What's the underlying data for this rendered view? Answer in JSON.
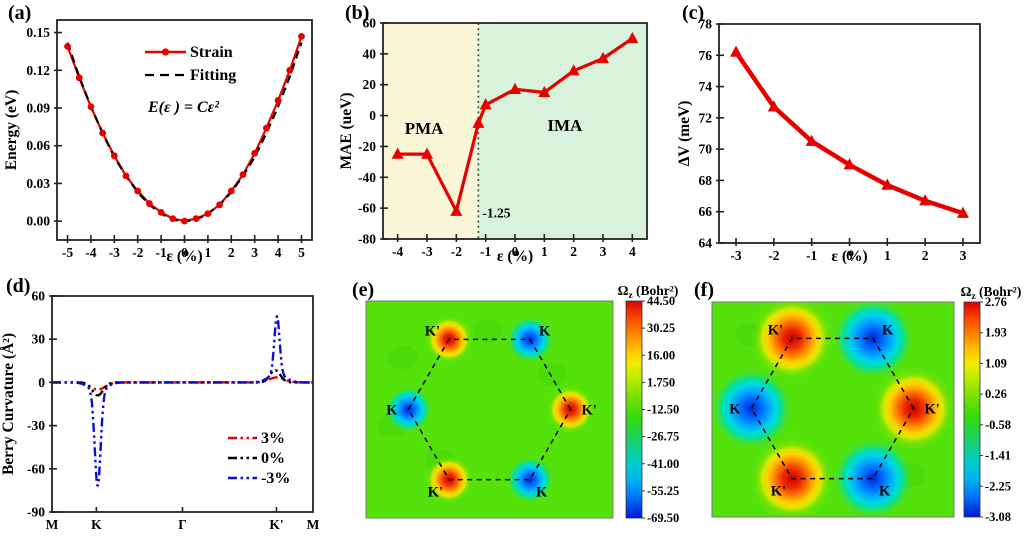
{
  "figure_title": "strain-dependent-properties-figure",
  "colors": {
    "red": "#e60000",
    "black": "#000000",
    "blue": "#0d0dd6",
    "pma_bg": "#faf7d8",
    "ima_bg": "#d9f2dc",
    "contour_green": "#55e20a",
    "blob_green": "#44d608",
    "box_stroke": "#222222"
  },
  "panels": [
    {
      "id": "a",
      "label": "(a)"
    },
    {
      "id": "b",
      "label": "(b)"
    },
    {
      "id": "c",
      "label": "(c)"
    },
    {
      "id": "d",
      "label": "(d)"
    },
    {
      "id": "e",
      "label": "(e)"
    },
    {
      "id": "f",
      "label": "(f)"
    }
  ],
  "chart_data": [
    {
      "panel": "a",
      "type": "line",
      "xlabel": "ε (%)",
      "ylabel": "Energy (eV)",
      "xlim": [
        -5.45,
        5.45
      ],
      "ylim": [
        -0.015,
        0.16
      ],
      "xticks": [
        "-5",
        "-4",
        "-3",
        "-2",
        "-1",
        "0",
        "1",
        "2",
        "3",
        "4",
        "5"
      ],
      "yticks": [
        "0.00",
        "0.03",
        "0.06",
        "0.09",
        "0.12",
        "0.15"
      ],
      "x": [
        -5,
        -4.5,
        -4,
        -3.5,
        -3,
        -2.5,
        -2,
        -1.5,
        -1,
        -0.5,
        0,
        0.5,
        1,
        1.5,
        2,
        2.5,
        3,
        3.5,
        4,
        4.5,
        5
      ],
      "series": [
        {
          "name": "Strain",
          "color": "#e60000",
          "marker": "circle",
          "style": "solid",
          "values": [
            0.139,
            0.114,
            0.091,
            0.07,
            0.052,
            0.036,
            0.024,
            0.014,
            0.007,
            0.002,
            0.0,
            0.002,
            0.006,
            0.013,
            0.024,
            0.037,
            0.054,
            0.074,
            0.096,
            0.12,
            0.147
          ]
        },
        {
          "name": "Fitting",
          "color": "#000000",
          "style": "dashed",
          "values": [
            0.142,
            0.115,
            0.091,
            0.07,
            0.051,
            0.036,
            0.023,
            0.013,
            0.006,
            0.001,
            0.0,
            0.001,
            0.006,
            0.013,
            0.023,
            0.036,
            0.051,
            0.07,
            0.091,
            0.115,
            0.142
          ]
        }
      ],
      "annotation": "E(ε ) = Cε²",
      "legend": [
        "Strain",
        "Fitting"
      ]
    },
    {
      "panel": "b",
      "type": "line",
      "xlabel": "ε (%)",
      "ylabel": "MAE (ueV)",
      "xlim": [
        -4.5,
        4.5
      ],
      "ylim": [
        -80,
        60
      ],
      "xticks": [
        "-4",
        "-3",
        "-2",
        "-1",
        "0",
        "1",
        "2",
        "3",
        "4"
      ],
      "yticks": [
        "-80",
        "-60",
        "-40",
        "-20",
        "0",
        "20",
        "40",
        "60"
      ],
      "regions": [
        {
          "label": "PMA",
          "from": -4.5,
          "to": -1.25,
          "color": "#faf7d8",
          "label_x": -3.1,
          "label_y": -12
        },
        {
          "label": "IMA",
          "from": -1.25,
          "to": 4.5,
          "color": "#d9f2dc",
          "label_x": 1.7,
          "label_y": -10
        }
      ],
      "vline": {
        "x": -1.25,
        "label": "-1.25",
        "label_y": -66,
        "style": "dotted"
      },
      "series": [
        {
          "name": "MAE",
          "color": "#e60000",
          "marker": "triangle",
          "style": "solid",
          "x": [
            -4,
            -3,
            -2,
            -1.25,
            -1,
            0,
            1,
            2,
            3,
            4
          ],
          "values": [
            -25,
            -25,
            -62,
            -5,
            7,
            17,
            15,
            29,
            37,
            50
          ]
        }
      ]
    },
    {
      "panel": "c",
      "type": "line",
      "xlabel": "ε (%)",
      "ylabel": "ΔV (meV)",
      "xlim": [
        -3.45,
        3.45
      ],
      "ylim": [
        64,
        78
      ],
      "xticks": [
        "-3",
        "-2",
        "-1",
        "0",
        "1",
        "2",
        "3"
      ],
      "yticks": [
        "64",
        "66",
        "68",
        "70",
        "72",
        "74",
        "76",
        "78"
      ],
      "series": [
        {
          "name": "DeltaV",
          "color": "#e60000",
          "marker": "triangle",
          "style": "solid",
          "x": [
            -3,
            -2,
            -1,
            0,
            1,
            2,
            3
          ],
          "values": [
            76.2,
            72.7,
            70.5,
            69.0,
            67.7,
            66.7,
            65.9
          ]
        }
      ]
    },
    {
      "panel": "d",
      "type": "line",
      "xlabel": "",
      "ylabel": "Berry Curvature (Å²)",
      "xlim": [
        0,
        1
      ],
      "ylim": [
        -90,
        60
      ],
      "yticks": [
        "-90",
        "-60",
        "-30",
        "0",
        "30",
        "60"
      ],
      "kpath": [
        {
          "label": "M",
          "pos": 0
        },
        {
          "label": "K",
          "pos": 0.17
        },
        {
          "label": "Γ",
          "pos": 0.5
        },
        {
          "label": "K'",
          "pos": 0.86
        },
        {
          "label": "M",
          "pos": 1
        }
      ],
      "series": [
        {
          "name": "3%",
          "color": "#e60000",
          "style": "dashdotdot",
          "peaks": [
            {
              "c": 0.175,
              "a": -5,
              "w": 0.04
            },
            {
              "c": 0.862,
              "a": 3.5,
              "w": 0.04
            }
          ]
        },
        {
          "name": "0%",
          "color": "#000000",
          "style": "dashdotdot",
          "peaks": [
            {
              "c": 0.175,
              "a": -9,
              "w": 0.03
            },
            {
              "c": 0.855,
              "a": 8.5,
              "w": 0.028
            }
          ]
        },
        {
          "name": "-3%",
          "color": "#0d0dd6",
          "style": "dashdotdot",
          "peaks": [
            {
              "c": 0.175,
              "a": -66,
              "w": 0.016
            },
            {
              "c": 0.175,
              "a": -6,
              "w": 0.045
            },
            {
              "c": 0.862,
              "a": 40,
              "w": 0.014
            },
            {
              "c": 0.862,
              "a": 6,
              "w": 0.045
            }
          ]
        }
      ],
      "legend": [
        "3%",
        "0%",
        "-3%"
      ]
    },
    {
      "panel": "e",
      "type": "heatmap",
      "colorbar_title": {
        "sym": "Ω",
        "sub": "z",
        "unit": " (Bohr²)"
      },
      "colorbar_ticks": [
        "44.50",
        "30.25",
        "16.00",
        "1.750",
        "-12.50",
        "-26.75",
        "-41.00",
        "-55.25",
        "-69.50"
      ],
      "vmax": 44.5,
      "vmin": -69.5,
      "vertices": [
        {
          "label": "K'",
          "angle": 120,
          "sign": "positive"
        },
        {
          "label": "K",
          "angle": 60,
          "sign": "negative"
        },
        {
          "label": "K",
          "angle": 180,
          "sign": "negative"
        },
        {
          "label": "K'",
          "angle": 0,
          "sign": "positive"
        },
        {
          "label": "K'",
          "angle": 240,
          "sign": "positive"
        },
        {
          "label": "K",
          "angle": 300,
          "sign": "negative"
        }
      ]
    },
    {
      "panel": "f",
      "type": "heatmap",
      "colorbar_title": {
        "sym": "Ω",
        "sub": "z",
        "unit": " (Bohr²)"
      },
      "colorbar_ticks": [
        "2.76",
        "1.93",
        "1.09",
        "0.26",
        "-0.58",
        "-1.41",
        "-2.25",
        "-3.08"
      ],
      "vmax": 2.76,
      "vmin": -3.08,
      "vertices": [
        {
          "label": "K'",
          "angle": 120,
          "sign": "positive"
        },
        {
          "label": "K",
          "angle": 60,
          "sign": "negative"
        },
        {
          "label": "K",
          "angle": 180,
          "sign": "negative"
        },
        {
          "label": "K'",
          "angle": 0,
          "sign": "positive"
        },
        {
          "label": "K'",
          "angle": 240,
          "sign": "positive"
        },
        {
          "label": "K",
          "angle": 300,
          "sign": "negative"
        }
      ]
    }
  ]
}
